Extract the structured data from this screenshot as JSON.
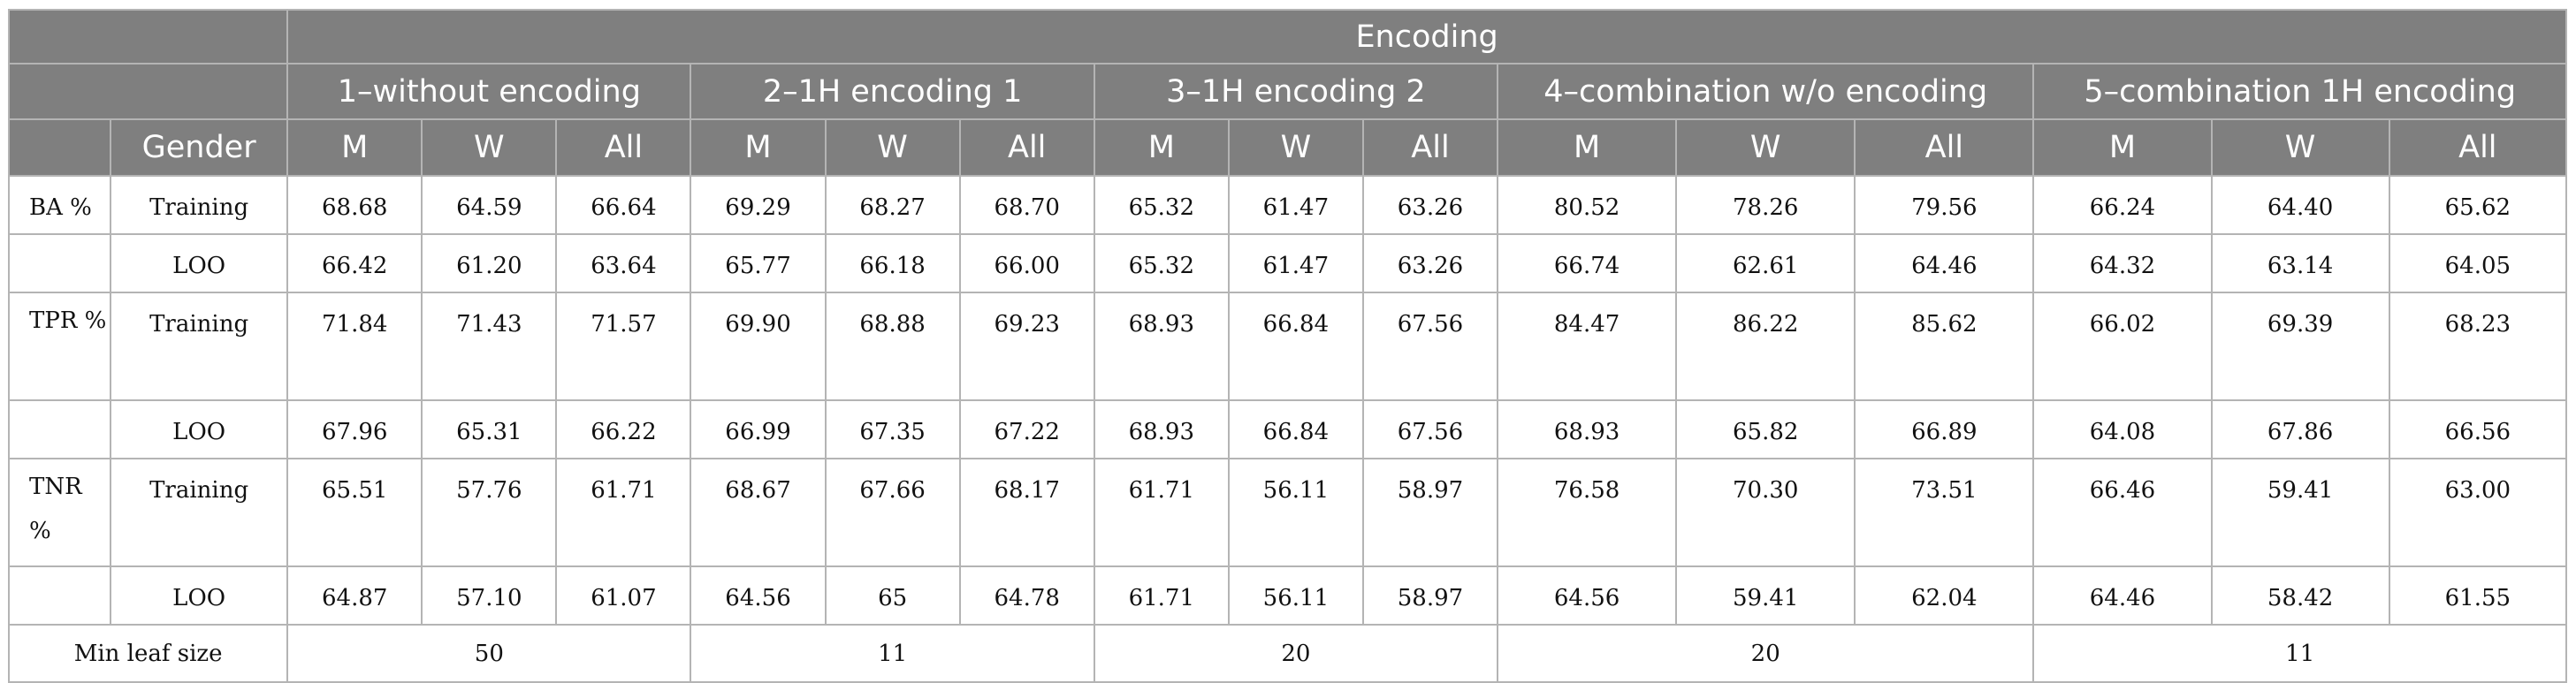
{
  "table": {
    "group_header": "Encoding",
    "gender_header": "Gender",
    "encodings": [
      "1–without encoding",
      "2–1H encoding 1",
      "3–1H encoding 2",
      "4–combination w/o encoding",
      "5–combination 1H encoding"
    ],
    "subheaders": [
      "M",
      "W",
      "All"
    ],
    "rows": [
      {
        "metric": "BA %",
        "phase": "Training",
        "values": [
          "68.68",
          "64.59",
          "66.64",
          "69.29",
          "68.27",
          "68.70",
          "65.32",
          "61.47",
          "63.26",
          "80.52",
          "78.26",
          "79.56",
          "66.24",
          "64.40",
          "65.62"
        ]
      },
      {
        "metric": "",
        "phase": "LOO",
        "values": [
          "66.42",
          "61.20",
          "63.64",
          "65.77",
          "66.18",
          "66.00",
          "65.32",
          "61.47",
          "63.26",
          "66.74",
          "62.61",
          "64.46",
          "64.32",
          "63.14",
          "64.05"
        ]
      },
      {
        "metric": "TPR %",
        "phase": "Training",
        "values": [
          "71.84",
          "71.43",
          "71.57",
          "69.90",
          "68.88",
          "69.23",
          "68.93",
          "66.84",
          "67.56",
          "84.47",
          "86.22",
          "85.62",
          "66.02",
          "69.39",
          "68.23"
        ]
      },
      {
        "metric": "",
        "phase": "LOO",
        "values": [
          "67.96",
          "65.31",
          "66.22",
          "66.99",
          "67.35",
          "67.22",
          "68.93",
          "66.84",
          "67.56",
          "68.93",
          "65.82",
          "66.89",
          "64.08",
          "67.86",
          "66.56"
        ]
      },
      {
        "metric": "TNR %",
        "phase": "Training",
        "values": [
          "65.51",
          "57.76",
          "61.71",
          "68.67",
          "67.66",
          "68.17",
          "61.71",
          "56.11",
          "58.97",
          "76.58",
          "70.30",
          "73.51",
          "66.46",
          "59.41",
          "63.00"
        ]
      },
      {
        "metric": "",
        "phase": "LOO",
        "values": [
          "64.87",
          "57.10",
          "61.07",
          "64.56",
          "65",
          "64.78",
          "61.71",
          "56.11",
          "58.97",
          "64.56",
          "59.41",
          "62.04",
          "64.46",
          "58.42",
          "61.55"
        ]
      }
    ],
    "min_leaf": {
      "label": "Min leaf size",
      "values": [
        "50",
        "11",
        "20",
        "20",
        "11"
      ]
    }
  }
}
